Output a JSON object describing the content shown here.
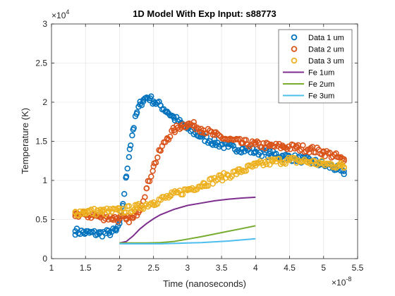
{
  "chart_data": {
    "type": "scatter",
    "title": "1D Model With Exp Input: s88773",
    "xlabel": "Time (nanoseconds)",
    "ylabel": "Temperature (K)",
    "x_multiplier": "10",
    "x_exponent": "-8",
    "y_multiplier": "10",
    "y_exponent": "4",
    "xlim": [
      1e-08,
      5.5e-08
    ],
    "ylim": [
      0,
      30000
    ],
    "x_ticks": [
      1e-08,
      1.5e-08,
      2e-08,
      2.5e-08,
      3e-08,
      3.5e-08,
      4e-08,
      4.5e-08,
      5e-08,
      5.5e-08
    ],
    "x_tick_labels": [
      "1",
      "1.5",
      "2",
      "2.5",
      "3",
      "3.5",
      "4",
      "4.5",
      "5",
      "5.5"
    ],
    "y_ticks": [
      0,
      5000,
      10000,
      15000,
      20000,
      25000,
      30000
    ],
    "y_tick_labels": [
      "0",
      "0.5",
      "1",
      "1.5",
      "2",
      "2.5",
      "3"
    ],
    "grid": true,
    "legend_position": "top-right",
    "series": [
      {
        "name": "Data 1 um",
        "kind": "markers",
        "color": "#0072BD",
        "x": [
          1.35e-08,
          1.5e-08,
          1.7e-08,
          1.85e-08,
          1.95e-08,
          2e-08,
          2.05e-08,
          2.1e-08,
          2.15e-08,
          2.2e-08,
          2.25e-08,
          2.3e-08,
          2.35e-08,
          2.4e-08,
          2.45e-08,
          2.5e-08,
          2.6e-08,
          2.7e-08,
          2.8e-08,
          2.9e-08,
          3e-08,
          3.2e-08,
          3.4e-08,
          3.6e-08,
          3.8e-08,
          4e-08,
          4.2e-08,
          4.4e-08,
          4.6e-08,
          4.8e-08,
          5e-08,
          5.2e-08,
          5.3e-08
        ],
        "y": [
          3500,
          3300,
          3200,
          3300,
          3600,
          4500,
          7000,
          10500,
          14000,
          16500,
          18500,
          19700,
          20300,
          20600,
          20500,
          20100,
          19600,
          18800,
          18000,
          17300,
          16600,
          15600,
          14800,
          14300,
          14000,
          13700,
          13400,
          13100,
          12800,
          12500,
          12000,
          11500,
          10800
        ]
      },
      {
        "name": "Data 2 um",
        "kind": "markers",
        "color": "#D95319",
        "x": [
          1.35e-08,
          1.5e-08,
          1.7e-08,
          1.9e-08,
          2e-08,
          2.1e-08,
          2.2e-08,
          2.3e-08,
          2.4e-08,
          2.5e-08,
          2.6e-08,
          2.7e-08,
          2.8e-08,
          2.9e-08,
          3e-08,
          3.1e-08,
          3.2e-08,
          3.4e-08,
          3.6e-08,
          3.8e-08,
          4e-08,
          4.2e-08,
          4.4e-08,
          4.6e-08,
          4.8e-08,
          5e-08,
          5.2e-08,
          5.3e-08
        ],
        "y": [
          5700,
          5600,
          5400,
          5200,
          5100,
          5000,
          5200,
          6500,
          9000,
          11800,
          13800,
          15400,
          16400,
          17000,
          17200,
          17000,
          16600,
          15800,
          15200,
          14800,
          14600,
          14400,
          14300,
          14200,
          14000,
          13600,
          13000,
          12500
        ]
      },
      {
        "name": "Data 3 um",
        "kind": "markers",
        "color": "#EDB120",
        "x": [
          1.35e-08,
          1.5e-08,
          1.75e-08,
          2e-08,
          2.25e-08,
          2.5e-08,
          2.75e-08,
          3e-08,
          3.25e-08,
          3.5e-08,
          3.75e-08,
          4e-08,
          4.25e-08,
          4.5e-08,
          4.75e-08,
          5e-08,
          5.25e-08,
          5.3e-08
        ],
        "y": [
          5900,
          6000,
          6000,
          6100,
          6500,
          7200,
          8000,
          8800,
          9600,
          10400,
          11100,
          11900,
          12400,
          12600,
          12400,
          12100,
          11900,
          11700
        ]
      },
      {
        "name": "Fe 1um",
        "kind": "line",
        "color": "#7E2F8E",
        "x": [
          2e-08,
          2.1e-08,
          2.2e-08,
          2.3e-08,
          2.4e-08,
          2.5e-08,
          2.6e-08,
          2.8e-08,
          3e-08,
          3.2e-08,
          3.4e-08,
          3.6e-08,
          3.8e-08,
          4e-08
        ],
        "y": [
          2000,
          2200,
          2900,
          3800,
          4500,
          5100,
          5600,
          6300,
          6800,
          7100,
          7400,
          7600,
          7750,
          7850
        ]
      },
      {
        "name": "Fe 2um",
        "kind": "line",
        "color": "#77AC30",
        "x": [
          2e-08,
          2.4e-08,
          2.6e-08,
          2.8e-08,
          3e-08,
          3.2e-08,
          3.4e-08,
          3.6e-08,
          3.8e-08,
          4e-08
        ],
        "y": [
          2000,
          2000,
          2050,
          2200,
          2500,
          2800,
          3150,
          3500,
          3850,
          4200
        ]
      },
      {
        "name": "Fe 3um",
        "kind": "line",
        "color": "#4DBEEE",
        "x": [
          2e-08,
          2.6e-08,
          2.8e-08,
          3e-08,
          3.2e-08,
          3.4e-08,
          3.6e-08,
          3.8e-08,
          4e-08
        ],
        "y": [
          1900,
          1900,
          1950,
          2000,
          2050,
          2150,
          2250,
          2400,
          2550
        ]
      }
    ]
  }
}
